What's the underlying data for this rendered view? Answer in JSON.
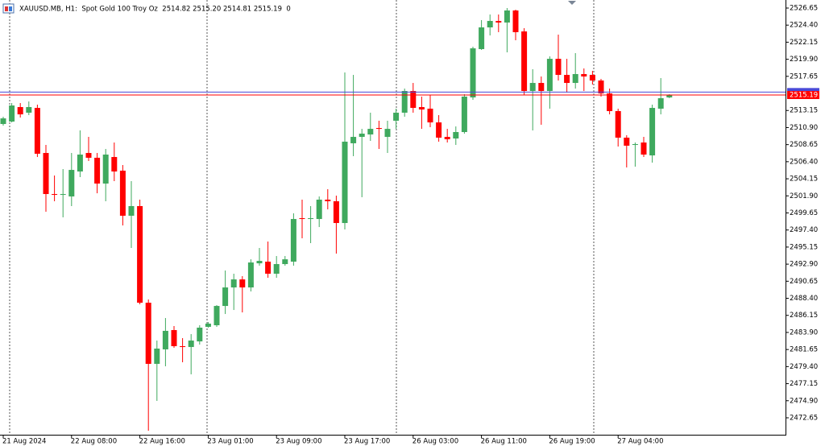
{
  "chart_data": {
    "type": "candlestick",
    "title": "XAUUSD.MB, H1:  Spot Gold 100 Troy Oz  2514.82 2515.20 2514.81 2515.19  0",
    "categories": [
      "21 Aug 2024",
      null,
      null,
      null,
      null,
      null,
      null,
      null,
      "22 Aug 08:00",
      null,
      null,
      null,
      null,
      null,
      null,
      null,
      "22 Aug 16:00",
      null,
      null,
      null,
      null,
      null,
      null,
      null,
      "23 Aug 01:00",
      null,
      null,
      null,
      null,
      null,
      null,
      null,
      "23 Aug 09:00",
      null,
      null,
      null,
      null,
      null,
      null,
      null,
      "23 Aug 17:00",
      null,
      null,
      null,
      null,
      null,
      null,
      null,
      "26 Aug 03:00",
      null,
      null,
      null,
      null,
      null,
      null,
      null,
      "26 Aug 11:00",
      null,
      null,
      null,
      null,
      null,
      null,
      null,
      "26 Aug 19:00",
      null,
      null,
      null,
      null,
      null,
      null,
      null,
      "27 Aug 04:00",
      null,
      null,
      null,
      null,
      null,
      null
    ],
    "open": [
      2511.37,
      2511.69,
      2513.6,
      2512.86,
      2513.49,
      2507.55,
      2502.14,
      2502.03,
      2501.82,
      2505.11,
      2507.55,
      2506.92,
      2503.52,
      2507.02,
      2505.22,
      2499.28,
      2500.55,
      2487.82,
      2479.76,
      2481.67,
      2484.21,
      2482.09,
      2481.98,
      2482.72,
      2484.64,
      2484.85,
      2487.39,
      2489.83,
      2490.89,
      2489.83,
      2493.01,
      2493.23,
      2491.64,
      2492.91,
      2493.23,
      2498.96,
      2498.85,
      2498.85,
      2501.4,
      2501.19,
      2498.32,
      2508.83,
      2509.67,
      2509.99,
      2510.84,
      2509.67,
      2511.8,
      2512.86,
      2515.72,
      2513.6,
      2513.39,
      2511.58,
      2509.67,
      2509.46,
      2510.31,
      2514.87,
      2521.24,
      2524.1,
      2524.95,
      2524.74,
      2526.33,
      2523.57,
      2515.72,
      2516.78,
      2515.72,
      2519.96,
      2517.84,
      2516.78,
      2517.95,
      2517.84,
      2517.1,
      2515.4,
      2513.07,
      2509.57,
      2508.61,
      2508.93,
      2507.23,
      2513.39,
      2514.87
    ],
    "high": [
      2512.33,
      2514.13,
      2514.13,
      2514.34,
      2513.92,
      2508.61,
      2504.58,
      2505.43,
      2507.55,
      2510.53,
      2509.67,
      2507.55,
      2508.08,
      2508.93,
      2505.96,
      2503.84,
      2501.4,
      2488.24,
      2482.83,
      2485.8,
      2484.74,
      2483.15,
      2483.68,
      2484.85,
      2485.27,
      2487.5,
      2492.06,
      2491.64,
      2491.32,
      2493.54,
      2495.03,
      2495.88,
      2493.97,
      2493.97,
      2499.6,
      2501.4,
      2500.55,
      2501.82,
      2502.78,
      2501.93,
      2518.16,
      2517.84,
      2510.73,
      2512.86,
      2511.8,
      2511.8,
      2513.39,
      2516.04,
      2516.78,
      2514.98,
      2515.19,
      2512.54,
      2510.73,
      2511.05,
      2515.3,
      2521.56,
      2525.06,
      2525.8,
      2525.8,
      2526.65,
      2526.44,
      2524.0,
      2518.59,
      2517.63,
      2520.28,
      2523.15,
      2519.96,
      2520.71,
      2518.69,
      2518.37,
      2517.31,
      2516.04,
      2513.39,
      2509.89,
      2508.93,
      2509.67,
      2513.92,
      2517.42,
      2515.3
    ],
    "low": [
      2511.16,
      2511.58,
      2512.22,
      2512.54,
      2507.02,
      2499.81,
      2501.19,
      2499.07,
      2500.55,
      2504.37,
      2506.49,
      2502.24,
      2501.19,
      2503.84,
      2498.0,
      2495.03,
      2487.61,
      2470.95,
      2474.88,
      2479.44,
      2481.88,
      2479.97,
      2478.38,
      2482.3,
      2484.53,
      2484.64,
      2486.33,
      2486.86,
      2486.54,
      2489.3,
      2492.7,
      2491.1,
      2491.1,
      2492.7,
      2492.7,
      2496.31,
      2495.67,
      2497.79,
      2500.12,
      2494.29,
      2497.47,
      2507.13,
      2501.72,
      2509.14,
      2508.08,
      2507.55,
      2510.73,
      2512.33,
      2512.86,
      2510.73,
      2510.95,
      2509.04,
      2508.93,
      2508.61,
      2510.1,
      2514.55,
      2521.13,
      2523.04,
      2523.47,
      2520.81,
      2522.41,
      2515.19,
      2510.52,
      2511.27,
      2513.39,
      2517.1,
      2515.51,
      2516.04,
      2515.72,
      2516.57,
      2514.98,
      2512.64,
      2508.4,
      2505.64,
      2505.75,
      2507.02,
      2506.28,
      2512.64,
      2514.77
    ],
    "close": [
      2512.11,
      2513.81,
      2512.64,
      2513.6,
      2507.45,
      2502.14,
      2502.03,
      2502.14,
      2505.32,
      2507.34,
      2506.92,
      2503.52,
      2507.34,
      2505.11,
      2499.28,
      2500.55,
      2487.82,
      2479.76,
      2481.77,
      2484.11,
      2482.09,
      2481.98,
      2482.83,
      2484.53,
      2485.06,
      2487.39,
      2489.83,
      2490.89,
      2489.83,
      2493.12,
      2493.33,
      2491.64,
      2492.91,
      2493.54,
      2498.85,
      2498.85,
      2498.96,
      2501.4,
      2501.19,
      2498.32,
      2509.04,
      2509.67,
      2510.1,
      2510.73,
      2510.73,
      2510.73,
      2512.86,
      2515.72,
      2513.49,
      2513.28,
      2511.58,
      2509.57,
      2509.36,
      2510.31,
      2514.98,
      2521.34,
      2524.1,
      2524.95,
      2524.74,
      2526.33,
      2523.47,
      2515.72,
      2516.78,
      2515.72,
      2519.96,
      2517.84,
      2516.78,
      2517.95,
      2517.63,
      2517.1,
      2515.4,
      2513.07,
      2509.57,
      2508.51,
      2508.72,
      2507.34,
      2513.49,
      2514.77,
      2515.19
    ],
    "up_color": "#3fa95e",
    "down_color": "#ff0000",
    "price_lines": [
      {
        "value": 2515.58,
        "color": "#4a4ad8"
      },
      {
        "value": 2515.19,
        "label": "2515.19",
        "color": "#ff0000"
      }
    ],
    "ylim": [
      2470.42,
      2527.71
    ],
    "yticks": [
      2526.65,
      {
        "value": 2524.4,
        "label": "2524.40"
      },
      2522.15,
      {
        "value": 2519.9,
        "label": "2519.90"
      },
      2517.65,
      2513.15,
      {
        "value": 2510.9,
        "label": "2510.90"
      },
      2508.65,
      {
        "value": 2506.4,
        "label": "2506.40"
      },
      2504.15,
      {
        "value": 2501.9,
        "label": "2501.90"
      },
      2499.65,
      {
        "value": 2497.4,
        "label": "2497.40"
      },
      2495.15,
      {
        "value": 2492.9,
        "label": "2492.90"
      },
      2490.65,
      {
        "value": 2488.4,
        "label": "2488.40"
      },
      2486.15,
      {
        "value": 2483.9,
        "label": "2483.90"
      },
      2481.65,
      {
        "value": 2479.4,
        "label": "2479.40"
      },
      2477.15,
      {
        "value": 2474.9,
        "label": "2474.90"
      },
      2472.65
    ]
  }
}
